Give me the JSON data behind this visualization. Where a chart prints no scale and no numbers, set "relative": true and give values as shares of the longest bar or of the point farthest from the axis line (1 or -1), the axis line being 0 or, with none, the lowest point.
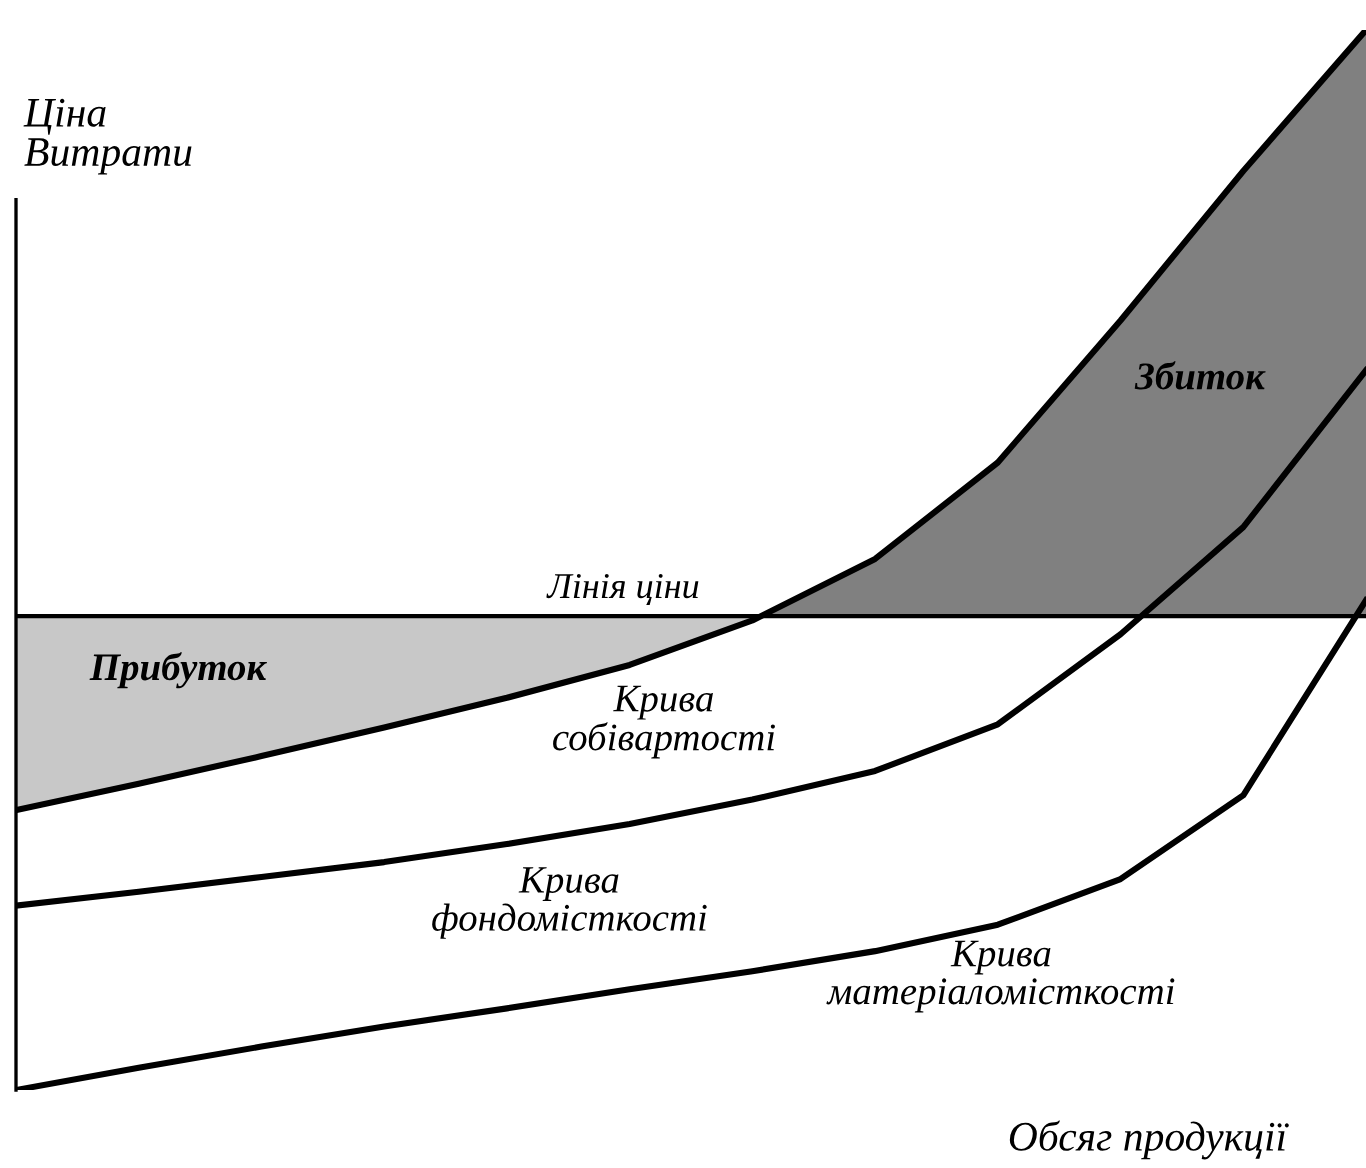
{
  "chart_data": {
    "type": "line",
    "relative": true,
    "xlabel": "Обсяг продукції",
    "ylabel": "Ціна\nВитрати",
    "legend": false,
    "marker": "none",
    "line_style": "solid",
    "categories": [
      null,
      null,
      null,
      null,
      null,
      null,
      null,
      null,
      null,
      null,
      null,
      null
    ],
    "series": [
      {
        "name": "Крива\nсобівартості",
        "color": "#000000",
        "values": [
          0.264,
          0.289,
          0.315,
          0.342,
          0.37,
          0.401,
          0.443,
          0.501,
          0.592,
          0.726,
          0.867,
          1
        ]
      },
      {
        "name": "Крива\nфондомісткості",
        "color": "#000000",
        "values": [
          0.174,
          0.187,
          0.201,
          0.215,
          0.232,
          0.251,
          0.274,
          0.301,
          0.345,
          0.43,
          0.531,
          0.679
        ]
      },
      {
        "name": "Крива\nматеріаломісткості",
        "color": "#000000",
        "values": [
          0,
          0.021,
          0.041,
          0.06,
          0.077,
          0.095,
          0.112,
          0.131,
          0.156,
          0.199,
          0.278,
          0.462
        ]
      }
    ],
    "ref_lines": [
      {
        "axis": "y",
        "value": 0.447,
        "label": "Лінія ціни",
        "color": "#000000",
        "line_style": "solid"
      }
    ],
    "annotations": [
      "Прибуток",
      "Збиток"
    ]
  }
}
